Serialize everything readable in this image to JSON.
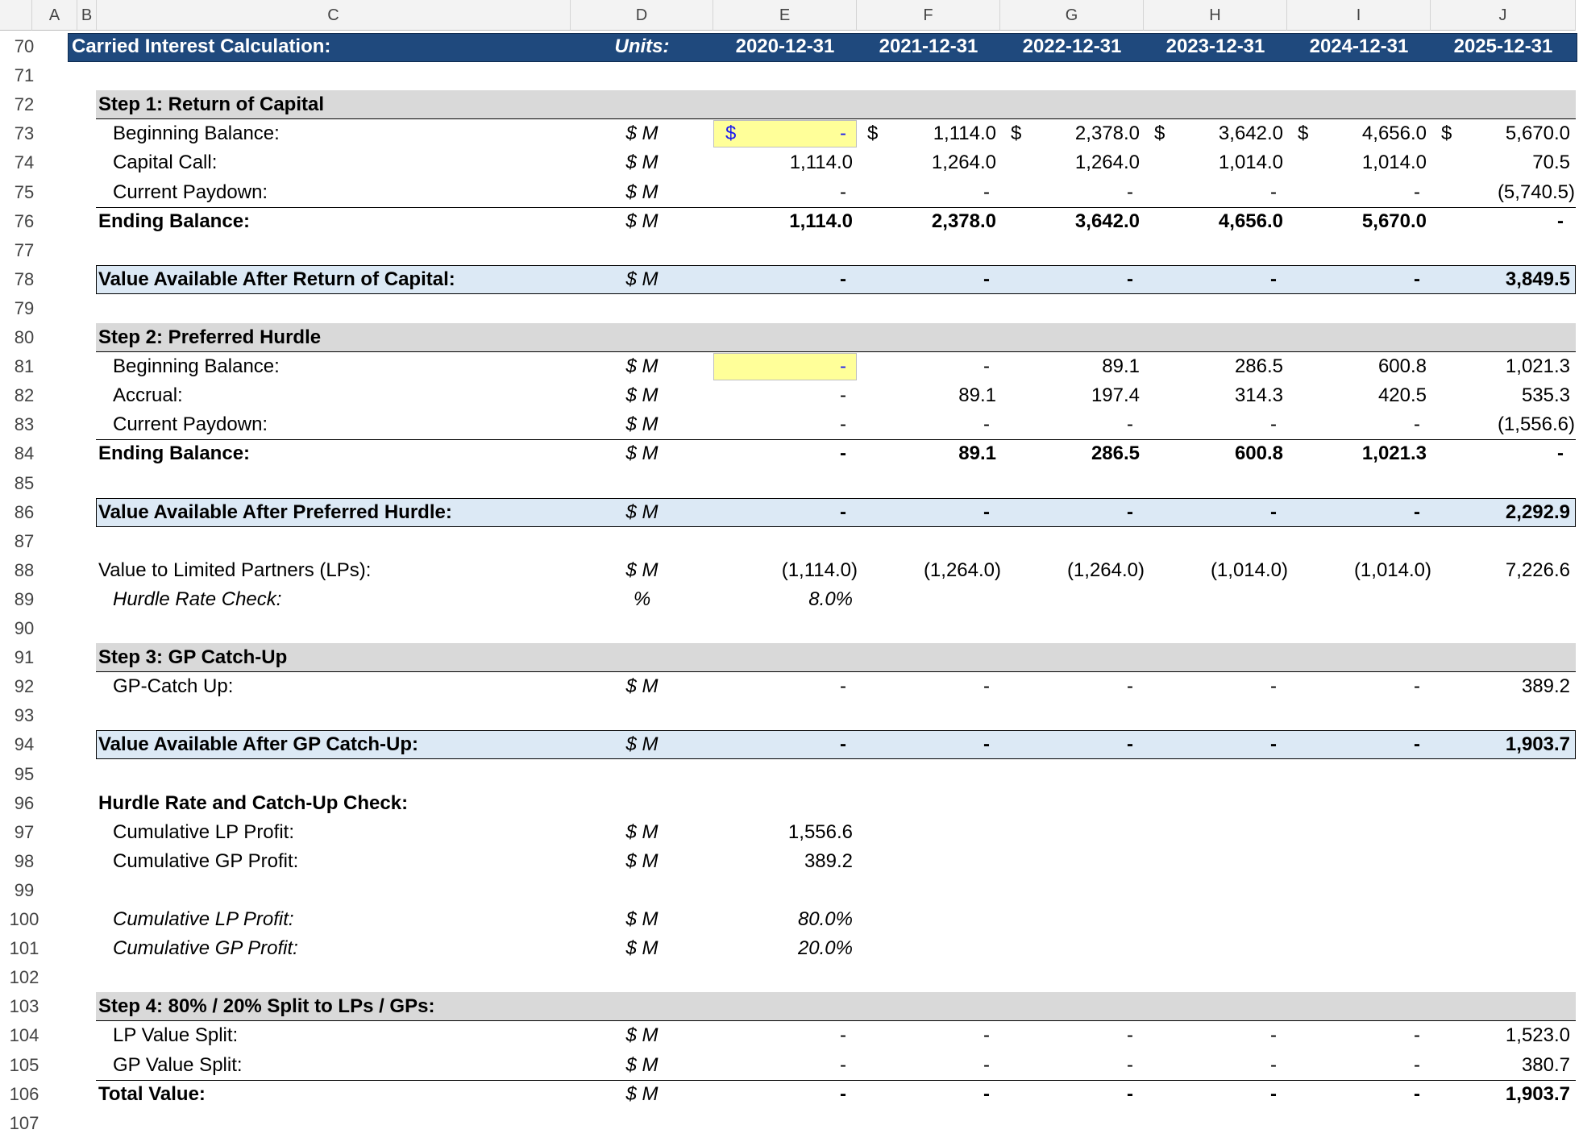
{
  "columns": [
    "A",
    "B",
    "C",
    "D",
    "E",
    "F",
    "G",
    "H",
    "I",
    "J"
  ],
  "dates": [
    "2020-12-31",
    "2021-12-31",
    "2022-12-31",
    "2023-12-31",
    "2024-12-31",
    "2025-12-31"
  ],
  "colors": {
    "title_bg": "#1f497d",
    "section_bg": "#d9d9d9",
    "value_box_bg": "#dce9f5",
    "input_fill": "#ffff99",
    "input_text": "#1a1af0"
  },
  "rows": [
    {
      "n": "70",
      "type": "title",
      "label": "Carried Interest Calculation:",
      "unit": "Units:"
    },
    {
      "n": "71",
      "type": "blank"
    },
    {
      "n": "72",
      "type": "section",
      "label": "Step 1: Return of Capital"
    },
    {
      "n": "73",
      "type": "data",
      "indent": true,
      "label": "Beginning Balance:",
      "unit": "$ M",
      "cur": true,
      "input": true,
      "vals": [
        "-",
        "1,114.0",
        "2,378.0",
        "3,642.0",
        "4,656.0",
        "5,670.0"
      ]
    },
    {
      "n": "74",
      "type": "data",
      "indent": true,
      "label": "Capital Call:",
      "unit": "$ M",
      "vals": [
        "1,114.0",
        "1,264.0",
        "1,264.0",
        "1,014.0",
        "1,014.0",
        "70.5"
      ]
    },
    {
      "n": "75",
      "type": "data",
      "indent": true,
      "label": "Current Paydown:",
      "unit": "$ M",
      "vals": [
        "-",
        "-",
        "-",
        "-",
        "-",
        "(5,740.5)"
      ]
    },
    {
      "n": "76",
      "type": "total",
      "label": "Ending Balance:",
      "unit": "$ M",
      "vals": [
        "1,114.0",
        "2,378.0",
        "3,642.0",
        "4,656.0",
        "5,670.0",
        "-"
      ]
    },
    {
      "n": "77",
      "type": "blank"
    },
    {
      "n": "78",
      "type": "valbox",
      "label": "Value Available After Return of Capital:",
      "unit": "$ M",
      "vals": [
        "-",
        "-",
        "-",
        "-",
        "-",
        "3,849.5"
      ]
    },
    {
      "n": "79",
      "type": "blank"
    },
    {
      "n": "80",
      "type": "section",
      "label": "Step 2: Preferred Hurdle"
    },
    {
      "n": "81",
      "type": "data",
      "indent": true,
      "label": "Beginning Balance:",
      "unit": "$ M",
      "input": true,
      "vals": [
        "-",
        "-",
        "89.1",
        "286.5",
        "600.8",
        "1,021.3"
      ]
    },
    {
      "n": "82",
      "type": "data",
      "indent": true,
      "label": "Accrual:",
      "unit": "$ M",
      "vals": [
        "-",
        "89.1",
        "197.4",
        "314.3",
        "420.5",
        "535.3"
      ]
    },
    {
      "n": "83",
      "type": "data",
      "indent": true,
      "label": "Current Paydown:",
      "unit": "$ M",
      "vals": [
        "-",
        "-",
        "-",
        "-",
        "-",
        "(1,556.6)"
      ]
    },
    {
      "n": "84",
      "type": "total",
      "label": "Ending Balance:",
      "unit": "$ M",
      "vals": [
        "-",
        "89.1",
        "286.5",
        "600.8",
        "1,021.3",
        "-"
      ]
    },
    {
      "n": "85",
      "type": "blank"
    },
    {
      "n": "86",
      "type": "valbox",
      "label": "Value Available After Preferred Hurdle:",
      "unit": "$ M",
      "vals": [
        "-",
        "-",
        "-",
        "-",
        "-",
        "2,292.9"
      ]
    },
    {
      "n": "87",
      "type": "blank"
    },
    {
      "n": "88",
      "type": "data",
      "label": "Value to Limited Partners (LPs):",
      "unit": "$ M",
      "vals": [
        "(1,114.0)",
        "(1,264.0)",
        "(1,264.0)",
        "(1,014.0)",
        "(1,014.0)",
        "7,226.6"
      ]
    },
    {
      "n": "89",
      "type": "data",
      "indent": true,
      "italic": true,
      "label": "Hurdle Rate Check:",
      "unit": "%",
      "vals": [
        "8.0%",
        "",
        "",
        "",
        "",
        ""
      ]
    },
    {
      "n": "90",
      "type": "blank"
    },
    {
      "n": "91",
      "type": "section",
      "label": "Step 3: GP Catch-Up"
    },
    {
      "n": "92",
      "type": "data",
      "indent": true,
      "label": "GP-Catch Up:",
      "unit": "$ M",
      "vals": [
        "-",
        "-",
        "-",
        "-",
        "-",
        "389.2"
      ]
    },
    {
      "n": "93",
      "type": "blank"
    },
    {
      "n": "94",
      "type": "valbox",
      "label": "Value Available After GP Catch-Up:",
      "unit": "$ M",
      "vals": [
        "-",
        "-",
        "-",
        "-",
        "-",
        "1,903.7"
      ]
    },
    {
      "n": "95",
      "type": "blank"
    },
    {
      "n": "96",
      "type": "heading",
      "label": "Hurdle Rate and Catch-Up Check:"
    },
    {
      "n": "97",
      "type": "data",
      "indent": true,
      "label": "Cumulative LP Profit:",
      "unit": "$ M",
      "vals": [
        "1,556.6",
        "",
        "",
        "",
        "",
        ""
      ]
    },
    {
      "n": "98",
      "type": "data",
      "indent": true,
      "label": "Cumulative GP Profit:",
      "unit": "$ M",
      "vals": [
        "389.2",
        "",
        "",
        "",
        "",
        ""
      ]
    },
    {
      "n": "99",
      "type": "blank"
    },
    {
      "n": "100",
      "type": "data",
      "indent": true,
      "italic": true,
      "label": "Cumulative LP Profit:",
      "unit": "$ M",
      "vals": [
        "80.0%",
        "",
        "",
        "",
        "",
        ""
      ]
    },
    {
      "n": "101",
      "type": "data",
      "indent": true,
      "italic": true,
      "label": "Cumulative GP Profit:",
      "unit": "$ M",
      "vals": [
        "20.0%",
        "",
        "",
        "",
        "",
        ""
      ]
    },
    {
      "n": "102",
      "type": "blank"
    },
    {
      "n": "103",
      "type": "section",
      "label": "Step 4: 80% / 20% Split to LPs / GPs:"
    },
    {
      "n": "104",
      "type": "data",
      "indent": true,
      "label": "LP Value Split:",
      "unit": "$ M",
      "vals": [
        "-",
        "-",
        "-",
        "-",
        "-",
        "1,523.0"
      ]
    },
    {
      "n": "105",
      "type": "data",
      "indent": true,
      "label": "GP Value Split:",
      "unit": "$ M",
      "vals": [
        "-",
        "-",
        "-",
        "-",
        "-",
        "380.7"
      ]
    },
    {
      "n": "106",
      "type": "total",
      "label": "Total Value:",
      "unit": "$ M",
      "vals": [
        "-",
        "-",
        "-",
        "-",
        "-",
        "1,903.7"
      ]
    },
    {
      "n": "107",
      "type": "blank"
    }
  ]
}
